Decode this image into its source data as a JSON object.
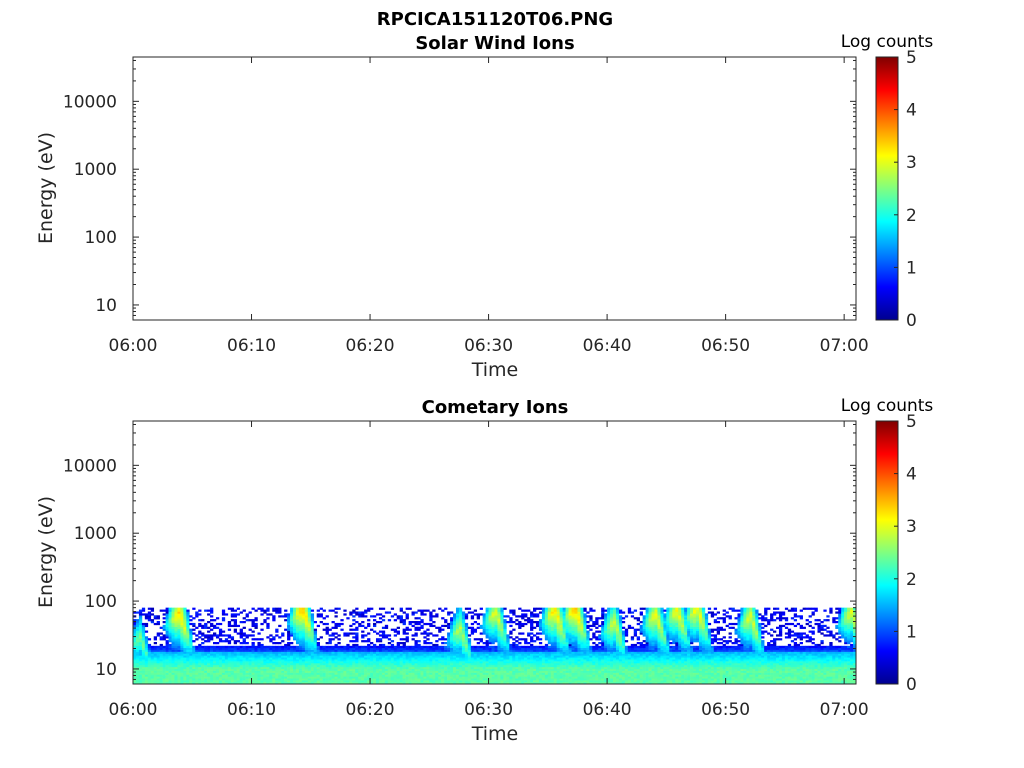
{
  "page_title": "RPCICA151120T06.PNG",
  "colormap": [
    "#00008f",
    "#0000ff",
    "#0080ff",
    "#00ffff",
    "#80ff80",
    "#ffff00",
    "#ff8000",
    "#ff0000",
    "#800000"
  ],
  "chart_data": [
    {
      "type": "heatmap",
      "title": "Solar Wind Ions",
      "xlabel": "Time",
      "ylabel": "Energy (eV)",
      "x_ticks": [
        "06:00",
        "06:10",
        "06:20",
        "06:30",
        "06:40",
        "06:50",
        "07:00"
      ],
      "x_range_minutes": [
        0,
        61
      ],
      "y_scale": "log",
      "y_ticks": [
        10,
        100,
        1000,
        10000
      ],
      "y_range": [
        6,
        45000
      ],
      "colorbar": {
        "label": "Log counts",
        "range": [
          0,
          5
        ],
        "ticks": [
          0,
          1,
          2,
          3,
          4,
          5
        ]
      },
      "data_present": false
    },
    {
      "type": "heatmap",
      "title": "Cometary Ions",
      "xlabel": "Time",
      "ylabel": "Energy (eV)",
      "x_ticks": [
        "06:00",
        "06:10",
        "06:20",
        "06:30",
        "06:40",
        "06:50",
        "07:00"
      ],
      "x_range_minutes": [
        0,
        61
      ],
      "y_scale": "log",
      "y_ticks": [
        10,
        100,
        1000,
        10000
      ],
      "y_range": [
        6,
        45000
      ],
      "colorbar": {
        "label": "Log counts",
        "range": [
          0,
          5
        ],
        "ticks": [
          0,
          1,
          2,
          3,
          4,
          5
        ]
      },
      "data_present": true,
      "background_level": {
        "min_energy_ev": 6,
        "max_energy_ev": 18,
        "log_counts": 2.3
      },
      "sparse_counts_max_energy_ev": 80,
      "bursts": [
        {
          "time_minutes": 0.5,
          "peak_energy_ev": 30,
          "peak_log_counts": 2.5
        },
        {
          "time_minutes": 3.8,
          "peak_energy_ev": 70,
          "peak_log_counts": 3.3
        },
        {
          "time_minutes": 14.2,
          "peak_energy_ev": 80,
          "peak_log_counts": 3.4
        },
        {
          "time_minutes": 27.5,
          "peak_energy_ev": 40,
          "peak_log_counts": 2.8
        },
        {
          "time_minutes": 30.5,
          "peak_energy_ev": 70,
          "peak_log_counts": 3.0
        },
        {
          "time_minutes": 35.5,
          "peak_energy_ev": 75,
          "peak_log_counts": 3.3
        },
        {
          "time_minutes": 37.2,
          "peak_energy_ev": 80,
          "peak_log_counts": 3.4
        },
        {
          "time_minutes": 40.5,
          "peak_energy_ev": 50,
          "peak_log_counts": 2.9
        },
        {
          "time_minutes": 44.0,
          "peak_energy_ev": 65,
          "peak_log_counts": 3.1
        },
        {
          "time_minutes": 45.8,
          "peak_energy_ev": 75,
          "peak_log_counts": 3.1
        },
        {
          "time_minutes": 47.5,
          "peak_energy_ev": 80,
          "peak_log_counts": 3.2
        },
        {
          "time_minutes": 52.0,
          "peak_energy_ev": 60,
          "peak_log_counts": 3.0
        },
        {
          "time_minutes": 60.5,
          "peak_energy_ev": 70,
          "peak_log_counts": 3.0
        }
      ]
    }
  ]
}
